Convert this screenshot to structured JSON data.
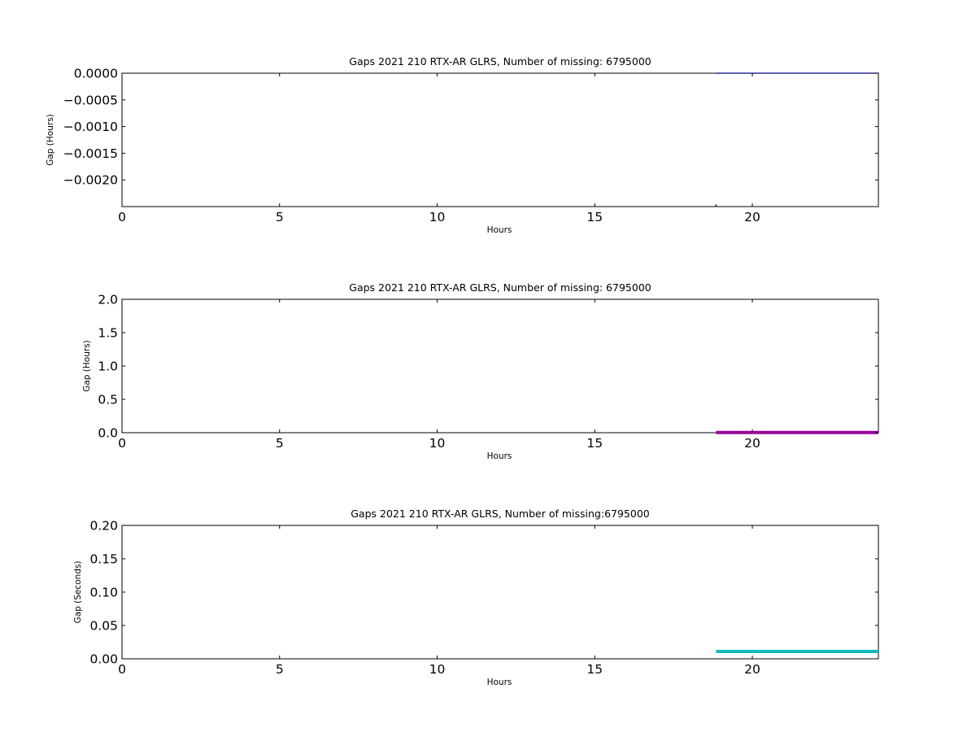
{
  "chart_data": [
    {
      "type": "line",
      "title": "Gaps 2021 210 RTX-AR  GLRS, Number of missing: 6795000",
      "xlabel": "Hours",
      "ylabel": "Gap (Hours)",
      "xlim": [
        0,
        24
      ],
      "ylim": [
        -0.0025,
        0.0
      ],
      "xticks": [
        0,
        5,
        10,
        15,
        20
      ],
      "xtick_labels": [
        "0",
        "5",
        "10",
        "15",
        "20"
      ],
      "yticks": [
        0.0,
        -0.0005,
        -0.001,
        -0.0015,
        -0.002
      ],
      "ytick_labels": [
        "0.0000",
        "−0.0005",
        "−0.0010",
        "−0.0015",
        "−0.0020"
      ],
      "grid": false,
      "series": [
        {
          "color": "#000080",
          "line_width": 1.2,
          "x": [
            18.85,
            24.0
          ],
          "y": [
            0.0,
            0.0
          ]
        },
        {
          "color": "#000080",
          "line_width": 1.5,
          "x": [
            18.85,
            18.85
          ],
          "y": [
            -0.00246,
            -0.0025
          ]
        }
      ]
    },
    {
      "type": "line",
      "title": "Gaps 2021 210 RTX-AR  GLRS, Number of missing: 6795000",
      "xlabel": "Hours",
      "ylabel": "Gap (Hours)",
      "xlim": [
        0,
        24
      ],
      "ylim": [
        0,
        2
      ],
      "xticks": [
        0,
        5,
        10,
        15,
        20
      ],
      "xtick_labels": [
        "0",
        "5",
        "10",
        "15",
        "20"
      ],
      "yticks": [
        0.0,
        0.5,
        1.0,
        1.5,
        2.0
      ],
      "ytick_labels": [
        "0.0",
        "0.5",
        "1.0",
        "1.5",
        "2.0"
      ],
      "grid": false,
      "series": [
        {
          "color": "#990099",
          "line_width": 4,
          "x": [
            18.85,
            24.0
          ],
          "y": [
            0.003,
            0.003
          ]
        }
      ]
    },
    {
      "type": "line",
      "title": "Gaps 2021 210 RTX-AR  GLRS, Number of missing:6795000",
      "xlabel": "Hours",
      "ylabel": "Gap (Seconds)",
      "xlim": [
        0,
        24
      ],
      "ylim": [
        0,
        0.2
      ],
      "xticks": [
        0,
        5,
        10,
        15,
        20
      ],
      "xtick_labels": [
        "0",
        "5",
        "10",
        "15",
        "20"
      ],
      "yticks": [
        0.0,
        0.05,
        0.1,
        0.15,
        0.2
      ],
      "ytick_labels": [
        "0.00",
        "0.05",
        "0.10",
        "0.15",
        "0.20"
      ],
      "grid": false,
      "series": [
        {
          "color": "#11bbbb",
          "line_width": 4,
          "x": [
            18.85,
            24.0
          ],
          "y": [
            0.011,
            0.011
          ]
        }
      ]
    }
  ]
}
